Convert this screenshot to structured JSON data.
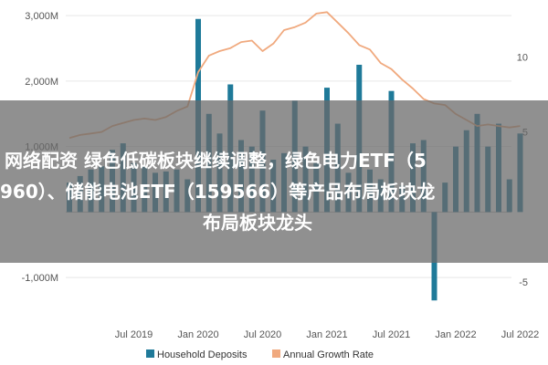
{
  "chart_data": {
    "type": "bar+line",
    "x_ticks": [
      "Jul 2019",
      "Jan 2020",
      "Jul 2020",
      "Jan 2021",
      "Jul 2021",
      "Jan 2022",
      "Jul 2022"
    ],
    "y_left_ticks": [
      "3,000M",
      "2,000M",
      "1,000M",
      "-1,000M"
    ],
    "y_left_values": [
      3000,
      2000,
      1000,
      -1000
    ],
    "ylim_left": [
      -1500,
      3100
    ],
    "y_right_ticks": [
      "10",
      "5",
      "-5"
    ],
    "y_right_values": [
      10,
      5,
      -5
    ],
    "ylim_right": [
      -6.9,
      13.2
    ],
    "x_start": "2019-01",
    "series": [
      {
        "name": "Household Deposits",
        "kind": "bar",
        "color": "#1f7a99",
        "values": [
          450,
          550,
          650,
          700,
          950,
          1050,
          750,
          700,
          600,
          620,
          650,
          500,
          2950,
          1500,
          1200,
          1950,
          1100,
          1000,
          1550,
          800,
          900,
          1700,
          1000,
          750,
          1900,
          1350,
          600,
          2250,
          650,
          500,
          1850,
          400,
          1050,
          1100,
          -1350,
          450,
          1000,
          1250,
          1500,
          1000,
          1350,
          500,
          1200
        ]
      },
      {
        "name": "Annual Growth Rate",
        "kind": "line",
        "color": "#f0a97e",
        "values": [
          4.6,
          4.8,
          4.9,
          5.0,
          5.4,
          5.6,
          5.8,
          5.9,
          5.8,
          6.0,
          6.4,
          6.7,
          9.0,
          10.1,
          10.4,
          10.6,
          11.0,
          11.1,
          10.4,
          10.9,
          11.8,
          12.0,
          12.3,
          12.9,
          13.0,
          12.3,
          11.6,
          10.8,
          10.5,
          9.6,
          9.2,
          8.5,
          7.9,
          7.2,
          6.9,
          6.8,
          6.2,
          5.8,
          5.4,
          5.5,
          5.4,
          5.3,
          5.4
        ]
      }
    ],
    "legend_position": "bottom"
  },
  "overlay": {
    "line1": "网络配资 绿色低碳板块继续调整，绿色电力ETF（5",
    "line2": "960）、储能电池ETF（159566）等产品布局板块龙",
    "line3": "布局板块龙头"
  }
}
